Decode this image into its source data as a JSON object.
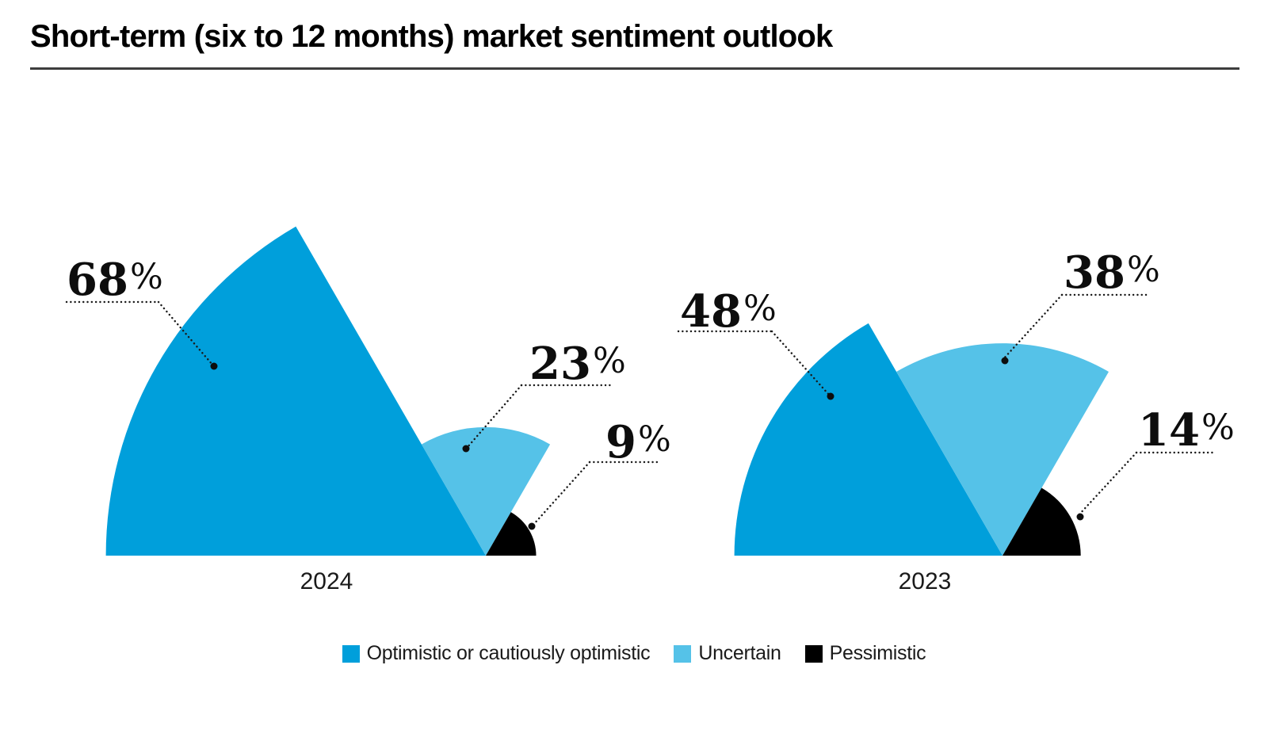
{
  "title": "Short-term (six to 12 months) market sentiment outlook",
  "percent_sign": "%",
  "chart_data": {
    "type": "pie",
    "variant": "semicircle_fan",
    "title": "Short-term (six to 12 months) market sentiment outlook",
    "unit": "percent",
    "categories": [
      "Optimistic or cautiously optimistic",
      "Uncertain",
      "Pessimistic"
    ],
    "colors": [
      "#009FDB",
      "#55C2E8",
      "#000000"
    ],
    "legend_position": "bottom",
    "angle_span_deg": 180,
    "sector_width_deg": 60,
    "radius_proportional_to_value": true,
    "charts": [
      {
        "year": "2024",
        "values": [
          68,
          23,
          9
        ],
        "labels": [
          "68%",
          "23%",
          "9%"
        ]
      },
      {
        "year": "2023",
        "values": [
          48,
          38,
          14
        ],
        "labels": [
          "48%",
          "38%",
          "14%"
        ]
      }
    ]
  },
  "legend": {
    "items": [
      {
        "label": "Optimistic or cautiously optimistic",
        "color": "#009FDB"
      },
      {
        "label": "Uncertain",
        "color": "#55C2E8"
      },
      {
        "label": "Pessimistic",
        "color": "#000000"
      }
    ]
  }
}
